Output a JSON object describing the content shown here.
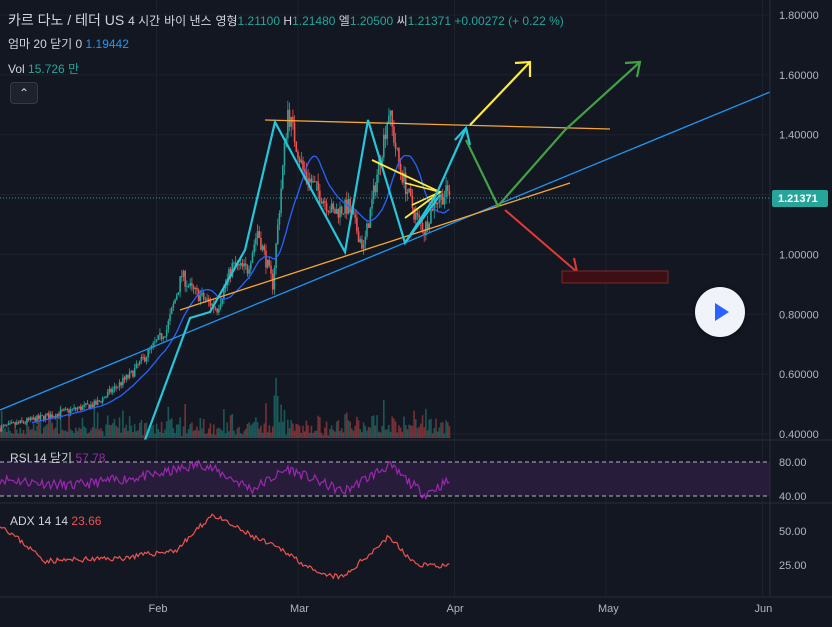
{
  "header": {
    "title": "카르 다노 / 테더 US",
    "interval": "4 시간",
    "exchange": "바이 낸스",
    "open_label": "영형",
    "open": "1.21100",
    "high_label": "H",
    "high": "1.21480",
    "low_label": "엘",
    "low": "1.20500",
    "close_label": "씨",
    "close": "1.21371",
    "change": "+0.00272 (+ 0.22 %)"
  },
  "ma": {
    "label": "엄마 20 닫기 0",
    "value": "1.19442"
  },
  "vol": {
    "label": "Vol",
    "value": "15.726 만"
  },
  "collapse_icon": "chevron-up-icon",
  "play_icon": "play-icon",
  "rsi": {
    "label": "RSI 14 닫기",
    "value": "57.78"
  },
  "adx": {
    "label": "ADX 14 14",
    "value": "23.66"
  },
  "colors": {
    "background": "#131722",
    "up": "#26a69a",
    "down": "#ef5350",
    "trend_blue": "#2196f3",
    "orange": "#f7a634",
    "yellow": "#ffeb3b",
    "cyan": "#26c6da",
    "green": "#43a047",
    "red": "#e53935",
    "rsi": "#9c27b0",
    "adx": "#ef5350"
  },
  "chart_data": [
    {
      "type": "candlestick",
      "title": "카르 다노 / 테더 US · 4 시간 · 바이 낸스",
      "ylim": [
        0.38,
        1.85
      ],
      "y_ticks": [
        "1.80000",
        "1.60000",
        "1.40000",
        "1.20000",
        "1.00000",
        "0.80000",
        "0.60000",
        "0.40000"
      ],
      "x_ticks": [
        "Feb",
        "Mar",
        "Apr",
        "May",
        "Jun"
      ],
      "last_price": "1.21371",
      "price_path": [
        [
          "Jan 01",
          0.42
        ],
        [
          "Jan 20",
          0.5
        ],
        [
          "Jan 27",
          0.6
        ],
        [
          "Feb 03",
          0.75
        ],
        [
          "Feb 06",
          0.93
        ],
        [
          "Feb 08",
          0.88
        ],
        [
          "Feb 13",
          0.82
        ],
        [
          "Feb 16",
          0.96
        ],
        [
          "Feb 19",
          0.95
        ],
        [
          "Feb 21",
          1.08
        ],
        [
          "Feb 24",
          0.9
        ],
        [
          "Feb 27",
          1.48
        ],
        [
          "Mar 02",
          1.28
        ],
        [
          "Mar 08",
          1.14
        ],
        [
          "Mar 11",
          1.16
        ],
        [
          "Mar 14",
          1.02
        ],
        [
          "Mar 19",
          1.48
        ],
        [
          "Mar 21",
          1.3
        ],
        [
          "Mar 24",
          1.14
        ],
        [
          "Mar 26",
          1.08
        ],
        [
          "Mar 28",
          1.18
        ],
        [
          "Mar 31",
          1.21
        ]
      ]
    },
    {
      "type": "line",
      "name": "RSI",
      "y_ticks": [
        "80.00",
        "40.00"
      ],
      "last": 57.78,
      "path": [
        [
          "Jan 01",
          60
        ],
        [
          "Jan 15",
          52
        ],
        [
          "Feb 01",
          65
        ],
        [
          "Feb 10",
          78
        ],
        [
          "Feb 20",
          48
        ],
        [
          "Feb 27",
          72
        ],
        [
          "Mar 10",
          45
        ],
        [
          "Mar 19",
          76
        ],
        [
          "Mar 26",
          42
        ],
        [
          "Mar 31",
          58
        ]
      ]
    },
    {
      "type": "line",
      "name": "ADX",
      "y_ticks": [
        "50.00",
        "25.00"
      ],
      "last": 23.66,
      "path": [
        [
          "Jan 01",
          55
        ],
        [
          "Jan 10",
          28
        ],
        [
          "Jan 25",
          30
        ],
        [
          "Feb 05",
          36
        ],
        [
          "Feb 12",
          62
        ],
        [
          "Feb 20",
          46
        ],
        [
          "Feb 27",
          34
        ],
        [
          "Mar 05",
          18
        ],
        [
          "Mar 10",
          16
        ],
        [
          "Mar 19",
          46
        ],
        [
          "Mar 24",
          26
        ],
        [
          "Mar 31",
          24
        ]
      ]
    }
  ]
}
